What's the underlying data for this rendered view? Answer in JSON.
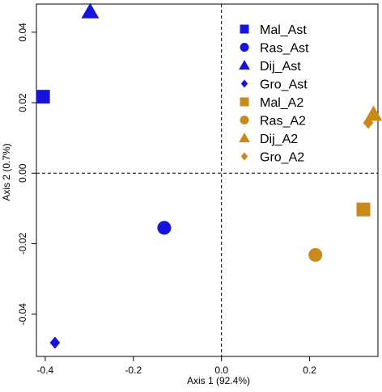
{
  "chart_data": {
    "type": "scatter",
    "xlabel": "Axis 1 (92.4%)",
    "ylabel": "Axis 2 (0.7%)",
    "xlim": [
      -0.42,
      0.355
    ],
    "ylim": [
      -0.052,
      0.048
    ],
    "x_ticks": [
      {
        "value": -0.4,
        "label": "-0.4"
      },
      {
        "value": -0.2,
        "label": "-0.2"
      },
      {
        "value": 0.0,
        "label": "0.0"
      },
      {
        "value": 0.2,
        "label": "0.2"
      }
    ],
    "y_ticks": [
      {
        "value": -0.04,
        "label": "-0.04"
      },
      {
        "value": -0.02,
        "label": "-0.02"
      },
      {
        "value": 0.0,
        "label": "0.00"
      },
      {
        "value": 0.02,
        "label": "0.02"
      },
      {
        "value": 0.04,
        "label": "0.04"
      }
    ],
    "reference_lines": {
      "x": 0,
      "y": 0,
      "style": "dashed"
    },
    "grid": false,
    "legend_position": "top-right",
    "series": [
      {
        "name": "Mal_Ast",
        "shape": "square",
        "color": "#1414dc",
        "x": -0.405,
        "y": 0.0217
      },
      {
        "name": "Ras_Ast",
        "shape": "circle",
        "color": "#1414dc",
        "x": -0.13,
        "y": -0.0155
      },
      {
        "name": "Dij_Ast",
        "shape": "triangle",
        "color": "#1414dc",
        "x": -0.298,
        "y": 0.0458
      },
      {
        "name": "Gro_Ast",
        "shape": "diamond",
        "color": "#1414dc",
        "x": -0.378,
        "y": -0.0481
      },
      {
        "name": "Mal_A2",
        "shape": "square",
        "color": "#c98a1a",
        "x": 0.322,
        "y": -0.0103
      },
      {
        "name": "Ras_A2",
        "shape": "circle",
        "color": "#c98a1a",
        "x": 0.213,
        "y": -0.0232
      },
      {
        "name": "Dij_A2",
        "shape": "triangle",
        "color": "#c98a1a",
        "x": 0.345,
        "y": 0.0167
      },
      {
        "name": "Gro_A2",
        "shape": "diamond",
        "color": "#c98a1a",
        "x": 0.333,
        "y": 0.0143
      }
    ]
  }
}
